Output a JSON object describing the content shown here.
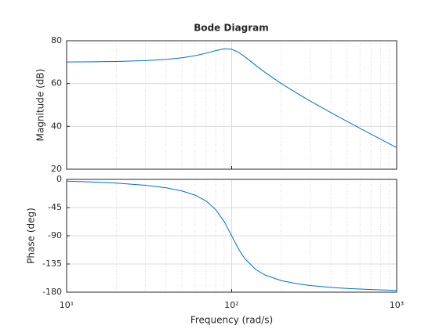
{
  "chart_data": [
    {
      "type": "line",
      "title": "Bode Diagram",
      "ylabel": "Magnitude (dB)",
      "x": [
        10,
        15,
        20,
        30,
        40,
        50,
        60,
        70,
        80,
        90,
        100,
        110,
        120,
        140,
        160,
        200,
        250,
        300,
        400,
        500,
        700,
        1000
      ],
      "series": [
        {
          "color": "#0072bd",
          "values": [
            70.08,
            70.17,
            70.31,
            70.7,
            71.27,
            72.04,
            73.01,
            74.17,
            75.38,
            76.22,
            76.02,
            74.6,
            72.57,
            68.5,
            65.12,
            60,
            55.36,
            51.79,
            46.4,
            42.35,
            36.35,
            30.08
          ]
        }
      ],
      "xscale": "log",
      "xlim": [
        10,
        1000
      ],
      "xticks": [
        10,
        100,
        1000
      ],
      "show_xticklabels": false,
      "xminorticks": [
        20,
        30,
        40,
        50,
        60,
        70,
        80,
        90,
        200,
        300,
        400,
        500,
        600,
        700,
        800,
        900
      ],
      "ylim": [
        20,
        80
      ],
      "yticks": [
        20,
        40,
        60,
        80
      ],
      "grid": true
    },
    {
      "type": "line",
      "ylabel": "Phase (deg)",
      "xlabel": "Frequency  (rad/s)",
      "x": [
        10,
        15,
        20,
        30,
        40,
        50,
        60,
        70,
        80,
        90,
        100,
        110,
        120,
        140,
        160,
        200,
        250,
        300,
        400,
        500,
        700,
        1000
      ],
      "series": [
        {
          "color": "#0072bd",
          "values": [
            -2.89,
            -4.39,
            -5.95,
            -9.36,
            -13.39,
            -18.43,
            -25.11,
            -34.46,
            -48.01,
            -67.11,
            -90,
            -110.9,
            -126.3,
            -143.9,
            -152.85,
            -161.57,
            -166.61,
            -169.38,
            -172.41,
            -174.05,
            -175.83,
            -177.11
          ]
        }
      ],
      "xscale": "log",
      "xlim": [
        10,
        1000
      ],
      "xticks": [
        {
          "value": 10,
          "label": "10¹"
        },
        {
          "value": 100,
          "label": "10²"
        },
        {
          "value": 1000,
          "label": "10³"
        }
      ],
      "show_xticklabels": true,
      "xminorticks": [
        20,
        30,
        40,
        50,
        60,
        70,
        80,
        90,
        200,
        300,
        400,
        500,
        600,
        700,
        800,
        900
      ],
      "ylim": [
        -180,
        0
      ],
      "yticks": [
        -180,
        -135,
        -90,
        -45,
        0
      ],
      "grid": true
    }
  ]
}
